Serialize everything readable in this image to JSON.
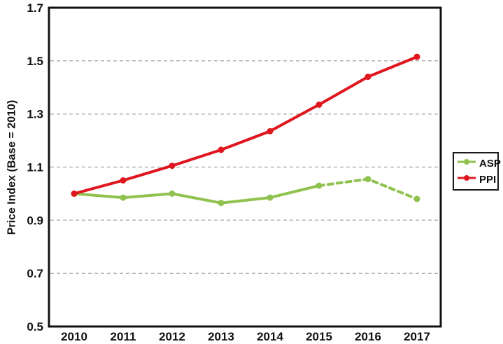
{
  "chart_data": {
    "type": "line",
    "title": "",
    "xlabel": "",
    "ylabel": "Price Index (Base = 2010)",
    "x": [
      "2010",
      "2011",
      "2012",
      "2013",
      "2014",
      "2015",
      "2016",
      "2017"
    ],
    "ylim": [
      0.5,
      1.7
    ],
    "ytick_step": 0.2,
    "ytick_labels": [
      "0.5",
      "0.7",
      "0.9",
      "1.1",
      "1.3",
      "1.5",
      "1.7"
    ],
    "grid": "horizontal dashed",
    "grid_color": "#b3b3b3",
    "frame_color": "#111111",
    "legend_position": "right",
    "series": [
      {
        "name": "ASP",
        "color": "#8fc24f",
        "style": "solid then dashed",
        "dashed_from": "2015",
        "values": [
          1.0,
          0.985,
          1.0,
          0.965,
          0.985,
          1.03,
          1.055,
          0.98
        ]
      },
      {
        "name": "PPI",
        "color": "#e0161f",
        "style": "solid",
        "dashed_from": null,
        "values": [
          1.0,
          1.05,
          1.105,
          1.165,
          1.235,
          1.335,
          1.44,
          1.515
        ]
      }
    ]
  },
  "legend": {
    "items": [
      "ASP",
      "PPI"
    ]
  }
}
